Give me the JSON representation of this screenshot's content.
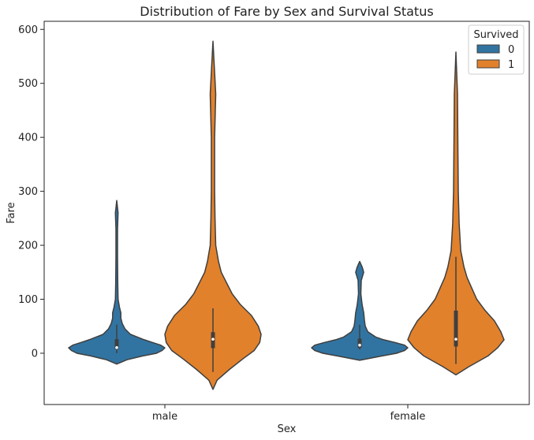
{
  "chart_data": {
    "type": "violin",
    "title": "Distribution of Fare by Sex and Survival Status",
    "xlabel": "Sex",
    "ylabel": "Fare",
    "categories": [
      "male",
      "female"
    ],
    "ylim": [
      -95,
      615
    ],
    "yticks": [
      0,
      100,
      200,
      300,
      400,
      500,
      600
    ],
    "legend": {
      "title": "Survived",
      "placement": "top-right",
      "entries": [
        {
          "label": "0",
          "color": "#3274a1"
        },
        {
          "label": "1",
          "color": "#e1812c"
        }
      ]
    },
    "series": [
      {
        "group": "male",
        "survived": "0",
        "color": "#3274a1",
        "profile": [
          [
            -20,
            0
          ],
          [
            -12,
            15
          ],
          [
            -5,
            38
          ],
          [
            0,
            58
          ],
          [
            5,
            66
          ],
          [
            10,
            70
          ],
          [
            15,
            64
          ],
          [
            20,
            52
          ],
          [
            25,
            40
          ],
          [
            30,
            30
          ],
          [
            35,
            20
          ],
          [
            45,
            12
          ],
          [
            55,
            8
          ],
          [
            65,
            6
          ],
          [
            75,
            6
          ],
          [
            85,
            4
          ],
          [
            100,
            2
          ],
          [
            130,
            1.5
          ],
          [
            180,
            1.2
          ],
          [
            230,
            1.2
          ],
          [
            260,
            2
          ],
          [
            283,
            0
          ]
        ],
        "box": {
          "q1": 7.9,
          "median": 10.5,
          "q3": 26
        }
      },
      {
        "group": "male",
        "survived": "1",
        "color": "#e1812c",
        "profile": [
          [
            -67,
            0
          ],
          [
            -50,
            3
          ],
          [
            -30,
            12
          ],
          [
            -10,
            22
          ],
          [
            5,
            30
          ],
          [
            20,
            34
          ],
          [
            35,
            35
          ],
          [
            50,
            33
          ],
          [
            70,
            28
          ],
          [
            90,
            20
          ],
          [
            110,
            14
          ],
          [
            130,
            10
          ],
          [
            150,
            6
          ],
          [
            170,
            4
          ],
          [
            200,
            2
          ],
          [
            250,
            1.5
          ],
          [
            300,
            1.2
          ],
          [
            400,
            1.2
          ],
          [
            480,
            2
          ],
          [
            520,
            1.2
          ],
          [
            578,
            0
          ]
        ],
        "box": {
          "q1": 9.5,
          "median": 26,
          "q3": 39
        }
      },
      {
        "group": "female",
        "survived": "0",
        "color": "#3274a1",
        "profile": [
          [
            -13,
            0
          ],
          [
            -5,
            28
          ],
          [
            0,
            46
          ],
          [
            5,
            56
          ],
          [
            10,
            60
          ],
          [
            15,
            56
          ],
          [
            20,
            44
          ],
          [
            25,
            30
          ],
          [
            30,
            20
          ],
          [
            40,
            10
          ],
          [
            50,
            7
          ],
          [
            60,
            6
          ],
          [
            75,
            5
          ],
          [
            90,
            3
          ],
          [
            110,
            1.5
          ],
          [
            135,
            2
          ],
          [
            150,
            5
          ],
          [
            160,
            3
          ],
          [
            170,
            0
          ]
        ],
        "box": {
          "q1": 9.8,
          "median": 15,
          "q3": 27
        }
      },
      {
        "group": "female",
        "survived": "1",
        "color": "#e1812c",
        "profile": [
          [
            -40,
            0
          ],
          [
            -25,
            8
          ],
          [
            -5,
            20
          ],
          [
            10,
            26
          ],
          [
            25,
            30
          ],
          [
            40,
            28
          ],
          [
            60,
            24
          ],
          [
            80,
            18
          ],
          [
            100,
            13
          ],
          [
            120,
            10
          ],
          [
            140,
            7
          ],
          [
            160,
            5
          ],
          [
            190,
            3
          ],
          [
            240,
            2
          ],
          [
            300,
            1.5
          ],
          [
            400,
            1.2
          ],
          [
            480,
            1
          ],
          [
            558,
            0
          ]
        ],
        "box": {
          "q1": 12.5,
          "median": 26,
          "q3": 79
        }
      }
    ]
  }
}
